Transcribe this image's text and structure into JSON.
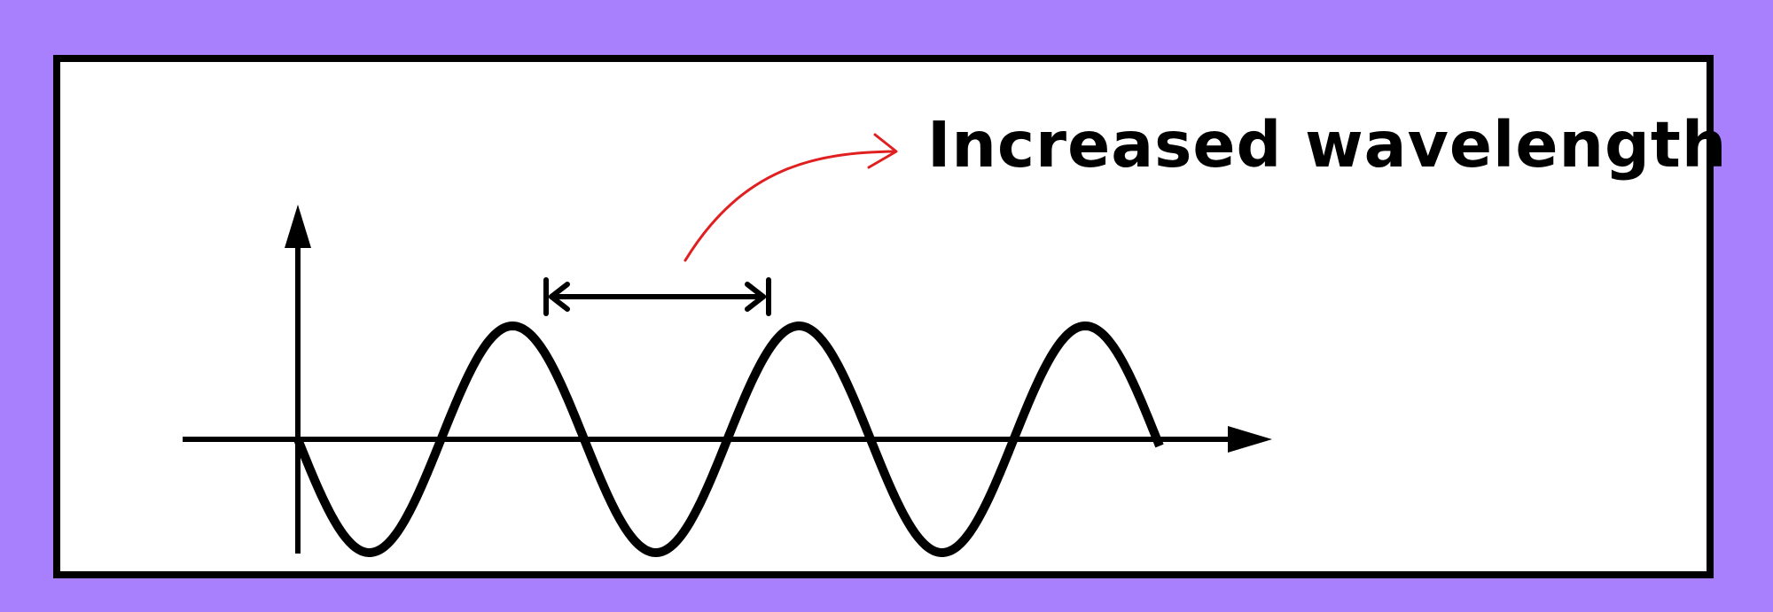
{
  "label": {
    "text": "Increased wavelength"
  },
  "colors": {
    "background": "#a880fe",
    "panel": "#ffffff",
    "ink": "#000000",
    "pointer": "#e02020"
  },
  "wave": {
    "cycles": 3,
    "highlighted_cycle": 2
  }
}
